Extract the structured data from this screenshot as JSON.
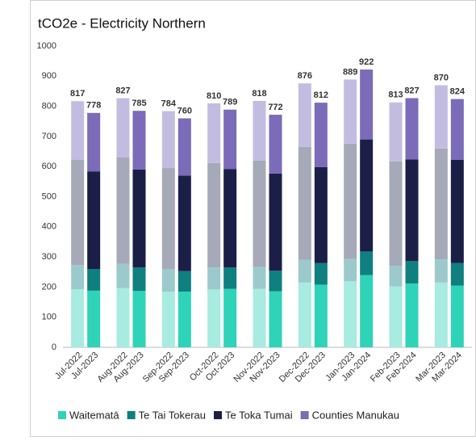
{
  "chart_data": {
    "type": "stacked_bar",
    "title": "tCO2e - Electricity Northern",
    "categories": [
      "Jul-2022",
      "Jul-2023",
      "Aug-2022",
      "Aug-2023",
      "Sep-2022",
      "Sep-2023",
      "Oct-2022",
      "Oct-2023",
      "Nov-2022",
      "Nov-2023",
      "Dec-2022",
      "Dec-2023",
      "Jan-2023",
      "Jan-2024",
      "Feb-2023",
      "Feb-2024",
      "Mar-2023",
      "Mar-2024"
    ],
    "series": [
      {
        "name": "Waitematā",
        "color": "#2fd3b8",
        "light_color": "#a8ebe0",
        "values": [
          193,
          188,
          197,
          187,
          185,
          185,
          192,
          194,
          194,
          186,
          215,
          208,
          219,
          240,
          202,
          212,
          215,
          205
        ]
      },
      {
        "name": "Te Tai Tokerau",
        "color": "#0f7f7f",
        "light_color": "#9cc9cc",
        "values": [
          80,
          72,
          80,
          78,
          75,
          68,
          73,
          71,
          73,
          68,
          75,
          72,
          74,
          78,
          68,
          74,
          77,
          75
        ]
      },
      {
        "name": "Te Toka Tumai",
        "color": "#1b1f47",
        "light_color": "#a6a9b8",
        "values": [
          349,
          324,
          353,
          325,
          335,
          317,
          347,
          327,
          353,
          323,
          375,
          318,
          383,
          372,
          347,
          338,
          368,
          342
        ]
      },
      {
        "name": "Counties Manukau",
        "color": "#7b6bb8",
        "light_color": "#c2bde0",
        "values": [
          195,
          194,
          197,
          195,
          189,
          190,
          198,
          197,
          198,
          195,
          211,
          214,
          213,
          232,
          196,
          203,
          210,
          202
        ]
      }
    ],
    "totals": [
      817,
      778,
      827,
      785,
      784,
      760,
      810,
      789,
      818,
      772,
      876,
      812,
      889,
      922,
      813,
      827,
      870,
      824
    ],
    "ylim": [
      0,
      1000
    ],
    "yticks": [
      0,
      100,
      200,
      300,
      400,
      500,
      600,
      700,
      800,
      900,
      1000
    ],
    "grid": false
  }
}
